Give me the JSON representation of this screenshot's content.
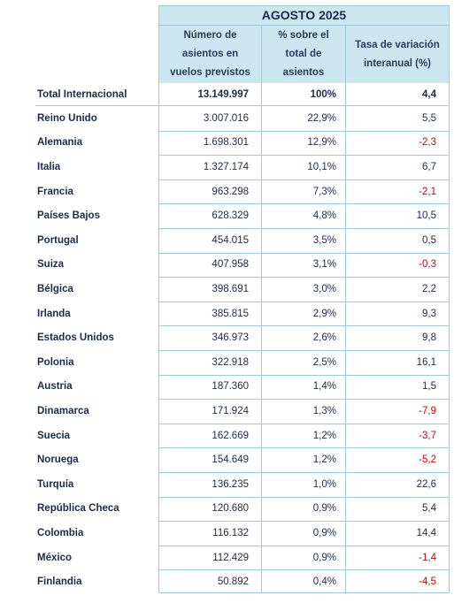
{
  "header": {
    "period": "AGOSTO 2025",
    "col1": [
      "Número de",
      "asientos en",
      "vuelos previstos"
    ],
    "col2": [
      "% sobre el",
      "total de",
      "asientos"
    ],
    "col3": [
      "Tasa de variación",
      "interanual (%)"
    ]
  },
  "total": {
    "name": "Total Internacional",
    "seats": "13.149.997",
    "pct": "100%",
    "change": "4,4"
  },
  "rows": [
    {
      "name": "Reino Unido",
      "seats": "3.007.016",
      "pct": "22,9%",
      "change": "5,5",
      "negative": false
    },
    {
      "name": "Alemania",
      "seats": "1.698.301",
      "pct": "12,9%",
      "change": "-2,3",
      "negative": true
    },
    {
      "name": "Italia",
      "seats": "1.327.174",
      "pct": "10,1%",
      "change": "6,7",
      "negative": false
    },
    {
      "name": "Francia",
      "seats": "963.298",
      "pct": "7,3%",
      "change": "-2,1",
      "negative": true
    },
    {
      "name": "Países Bajos",
      "seats": "628.329",
      "pct": "4,8%",
      "change": "10,5",
      "negative": false
    },
    {
      "name": "Portugal",
      "seats": "454.015",
      "pct": "3,5%",
      "change": "0,5",
      "negative": false
    },
    {
      "name": "Suiza",
      "seats": "407.958",
      "pct": "3,1%",
      "change": "-0,3",
      "negative": true
    },
    {
      "name": "Bélgica",
      "seats": "398.691",
      "pct": "3,0%",
      "change": "2,2",
      "negative": false
    },
    {
      "name": "Irlanda",
      "seats": "385.815",
      "pct": "2,9%",
      "change": "9,3",
      "negative": false
    },
    {
      "name": "Estados Unidos",
      "seats": "346.973",
      "pct": "2,6%",
      "change": "9,8",
      "negative": false
    },
    {
      "name": "Polonia",
      "seats": "322.918",
      "pct": "2,5%",
      "change": "16,1",
      "negative": false
    },
    {
      "name": "Austria",
      "seats": "187.360",
      "pct": "1,4%",
      "change": "1,5",
      "negative": false
    },
    {
      "name": "Dinamarca",
      "seats": "171.924",
      "pct": "1,3%",
      "change": "-7,9",
      "negative": true
    },
    {
      "name": "Suecia",
      "seats": "162.669",
      "pct": "1,2%",
      "change": "-3,7",
      "negative": true
    },
    {
      "name": "Noruega",
      "seats": "154.649",
      "pct": "1,2%",
      "change": "-5,2",
      "negative": true
    },
    {
      "name": "Turquía",
      "seats": "136.235",
      "pct": "1,0%",
      "change": "22,6",
      "negative": false
    },
    {
      "name": "República Checa",
      "seats": "120.680",
      "pct": "0,9%",
      "change": "5,4",
      "negative": false
    },
    {
      "name": "Colombia",
      "seats": "116.132",
      "pct": "0,9%",
      "change": "14,4",
      "negative": false
    },
    {
      "name": "México",
      "seats": "112.429",
      "pct": "0,9%",
      "change": "-1,4",
      "negative": true
    },
    {
      "name": "Finlandia",
      "seats": "50.892",
      "pct": "0,4%",
      "change": "-4,5",
      "negative": true
    }
  ],
  "colors": {
    "header_bg": "#cce6ef",
    "border": "#9ecbdb",
    "text": "#1a2b4a",
    "negative": "#d60000"
  }
}
